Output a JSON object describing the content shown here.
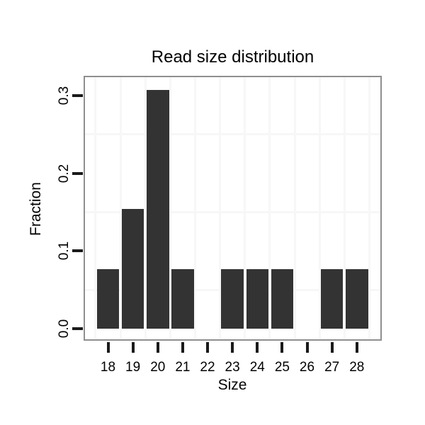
{
  "figure": {
    "background": "#ffffff"
  },
  "chart_data": {
    "type": "bar",
    "title": "Read size distribution",
    "xlabel": "Size",
    "ylabel": "Fraction",
    "categories": [
      "18",
      "19",
      "20",
      "21",
      "22",
      "23",
      "24",
      "25",
      "26",
      "27",
      "28"
    ],
    "values": [
      0.0769,
      0.1538,
      0.3077,
      0.0769,
      0,
      0.0769,
      0.0769,
      0.0769,
      0,
      0.0769,
      0.0769
    ],
    "ytick_values": [
      0.0,
      0.1,
      0.2,
      0.3
    ],
    "ytick_labels": [
      "0.0",
      "0.1",
      "0.2",
      "0.3"
    ],
    "ylim": [
      -0.0155,
      0.3255
    ],
    "minor_gridlines_y": [
      0.05,
      0.15,
      0.25
    ],
    "grid": "minor-only",
    "legend": "none",
    "colors": {
      "bar": "#333333",
      "panel_border": "#8f8f8f",
      "grid": "#f7f7f7",
      "tick": "#1a1a1a",
      "text": "#000000"
    }
  }
}
